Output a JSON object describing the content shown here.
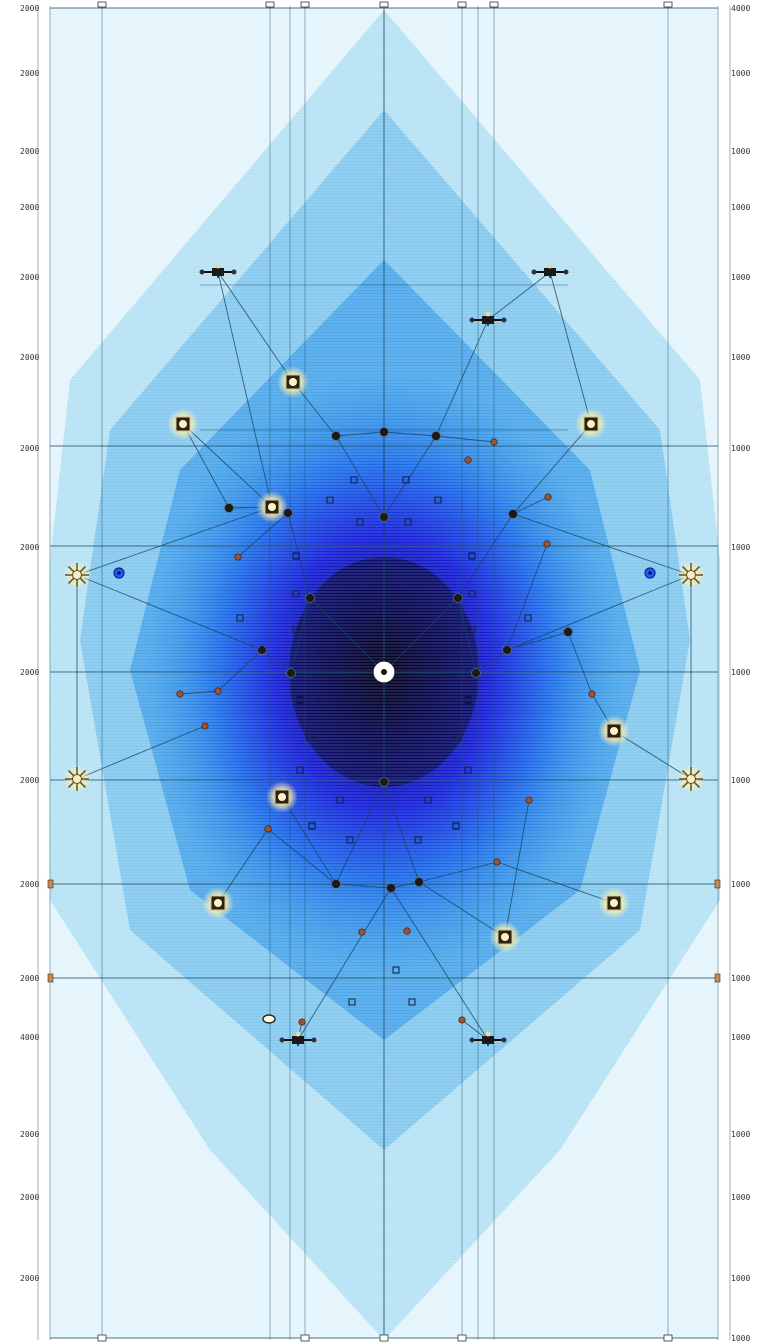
{
  "colors": {
    "background": "#ffffff",
    "field_light": "#bfe6f5",
    "field_mid": "#3fa9e6",
    "field_core": "#1a22e0",
    "field_center": "#03031a",
    "line": "#1d4f6e",
    "node_dark": "#1a1a1a",
    "node_rust": "#a0522d",
    "node_glow": "#fff4c8",
    "node_blue": "#1f5bff"
  },
  "left_labels": [
    "2000",
    "2000",
    "2000",
    "2000",
    "2000",
    "2000",
    "2000",
    "2000",
    "2000",
    "2000",
    "2000",
    "2000",
    "4000",
    "2000",
    "2000",
    "2000"
  ],
  "right_labels": [
    "4000",
    "1000",
    "1000",
    "1000",
    "1000",
    "1000",
    "1000",
    "1000",
    "1000",
    "1000",
    "1000",
    "1000",
    "1000",
    "1000",
    "1000",
    "1000",
    "1000"
  ],
  "icons": {
    "center": "target-icon",
    "glow": "light-node-icon",
    "star": "star-node-icon",
    "drone": "drone-icon"
  }
}
